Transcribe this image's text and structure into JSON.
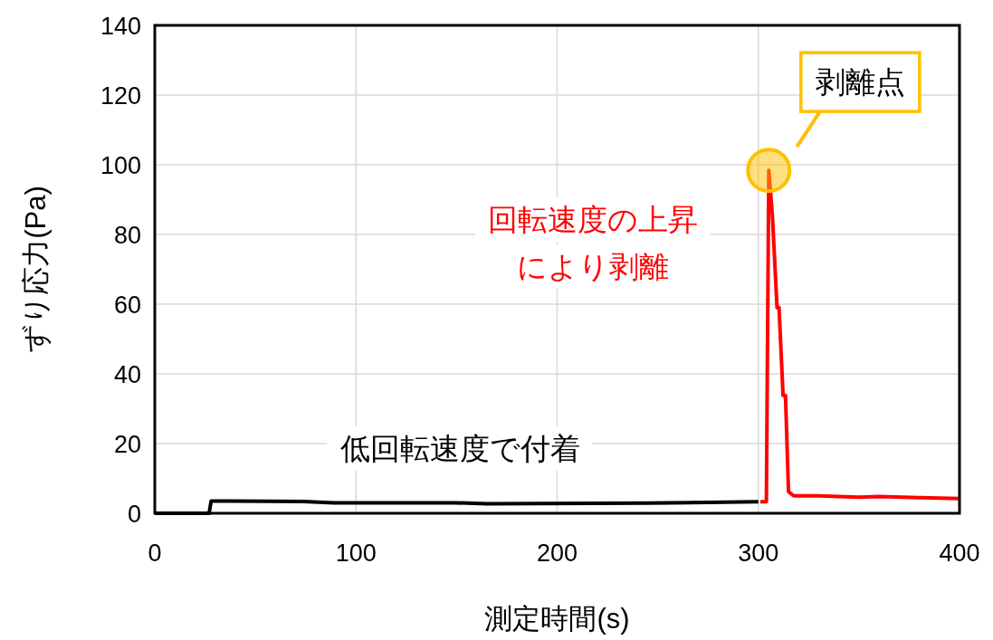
{
  "chart_data": {
    "type": "line",
    "xlabel": "測定時間(s)",
    "ylabel": "ずり応力(Pa)",
    "xlim": [
      0,
      400
    ],
    "ylim": [
      0,
      140
    ],
    "xticks": [
      0,
      100,
      200,
      300,
      400
    ],
    "yticks": [
      0,
      20,
      40,
      60,
      80,
      100,
      120,
      140
    ],
    "grid": true,
    "marker": "none",
    "line_style": "solid",
    "series": [
      {
        "color": "#000000",
        "x": [
          0,
          27,
          28,
          74,
          89,
          150,
          165,
          245,
          275,
          300
        ],
        "values": [
          0,
          0,
          3.5,
          3.4,
          3.0,
          3.0,
          2.7,
          2.9,
          3.1,
          3.3
        ]
      },
      {
        "color": "#ff0000",
        "x": [
          301,
          304,
          305.2,
          307,
          309.3,
          310.3,
          312.3,
          313.5,
          315,
          317.6,
          330,
          350,
          360,
          380,
          400
        ],
        "values": [
          3.3,
          3.3,
          98.4,
          85.4,
          59,
          59,
          33.8,
          33.8,
          6.2,
          5,
          5,
          4.6,
          4.8,
          4.5,
          4.2
        ]
      }
    ],
    "annotations": [
      {
        "text": "剥離点",
        "x": 305.2,
        "y": 98.4
      },
      "回転速度の上昇",
      "により剥離",
      "低回転速度で付着"
    ]
  }
}
